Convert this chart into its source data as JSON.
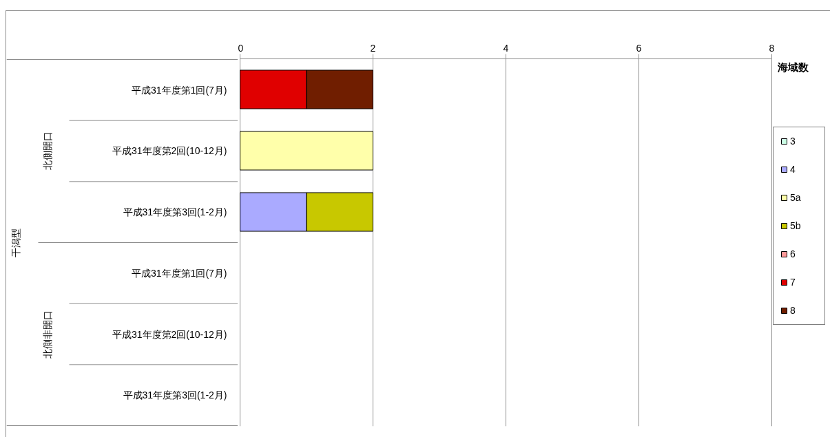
{
  "chart_data": {
    "type": "bar",
    "orientation": "horizontal",
    "stacked": true,
    "categories": [
      "平成31年度第1回(7月)",
      "平成31年度第2回(10-12月)",
      "平成31年度第3回(1-2月)",
      "平成31年度第1回(7月)",
      "平成31年度第2回(10-12月)",
      "平成31年度第3回(1-2月)"
    ],
    "series": [
      {
        "name": "3",
        "color": "#ccffe6",
        "values": [
          null,
          null,
          null,
          null,
          null,
          null
        ]
      },
      {
        "name": "4",
        "color": "#aaaaff",
        "values": [
          null,
          null,
          1,
          null,
          null,
          null
        ]
      },
      {
        "name": "5a",
        "color": "#ffffaa",
        "values": [
          null,
          2,
          null,
          null,
          null,
          null
        ]
      },
      {
        "name": "5b",
        "color": "#c8c800",
        "values": [
          null,
          null,
          1,
          null,
          null,
          null
        ]
      },
      {
        "name": "6",
        "color": "#ff9999",
        "values": [
          null,
          null,
          null,
          null,
          null,
          null
        ]
      },
      {
        "name": "7",
        "color": "#e00000",
        "values": [
          1,
          null,
          null,
          null,
          null,
          null
        ]
      },
      {
        "name": "8",
        "color": "#701e00",
        "values": [
          1,
          null,
          null,
          null,
          null,
          null
        ]
      }
    ],
    "xlabel": "海域数",
    "xlim": [
      0,
      8
    ],
    "xticks": [
      0,
      2,
      4,
      6,
      8
    ],
    "grid": "x",
    "legend": "right",
    "annotations": [
      "北側開口",
      "北側非開口",
      "干潟型"
    ]
  }
}
